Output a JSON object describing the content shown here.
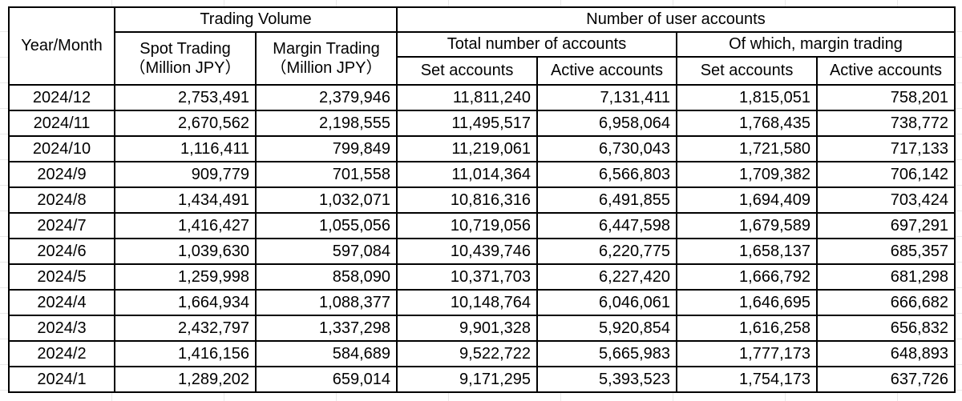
{
  "colors": {
    "table_border": "#000000",
    "text": "#000000",
    "background": "#ffffff",
    "sheet_gridline": "#e9e9e9"
  },
  "table": {
    "header": {
      "year_month": "Year/Month",
      "trading_volume": "Trading Volume",
      "user_accounts": "Number of user accounts",
      "spot_trading_line1": "Spot Trading",
      "spot_trading_line2": "（Million JPY）",
      "margin_trading_line1": "Margin Trading",
      "margin_trading_line2": "（Million JPY）",
      "total_accounts": "Total number of accounts",
      "of_which_margin": "Of which, margin trading",
      "total_set_accounts": "Set accounts",
      "total_active_accounts": "Active accounts",
      "margin_set_accounts": "Set accounts",
      "margin_active_accounts": "Active accounts"
    },
    "column_keys": [
      "spot-trading",
      "margin-trading",
      "total-set-accounts",
      "total-active-accounts",
      "margin-set-accounts",
      "margin-active-accounts"
    ],
    "rows": [
      {
        "month": "2024/12",
        "values": [
          "2,753,491",
          "2,379,946",
          "11,811,240",
          "7,131,411",
          "1,815,051",
          "758,201"
        ]
      },
      {
        "month": "2024/11",
        "values": [
          "2,670,562",
          "2,198,555",
          "11,495,517",
          "6,958,064",
          "1,768,435",
          "738,772"
        ]
      },
      {
        "month": "2024/10",
        "values": [
          "1,116,411",
          "799,849",
          "11,219,061",
          "6,730,043",
          "1,721,580",
          "717,133"
        ]
      },
      {
        "month": "2024/9",
        "values": [
          "909,779",
          "701,558",
          "11,014,364",
          "6,566,803",
          "1,709,382",
          "706,142"
        ]
      },
      {
        "month": "2024/8",
        "values": [
          "1,434,491",
          "1,032,071",
          "10,816,316",
          "6,491,855",
          "1,694,409",
          "703,424"
        ]
      },
      {
        "month": "2024/7",
        "values": [
          "1,416,427",
          "1,055,056",
          "10,719,056",
          "6,447,598",
          "1,679,589",
          "697,291"
        ]
      },
      {
        "month": "2024/6",
        "values": [
          "1,039,630",
          "597,084",
          "10,439,746",
          "6,220,775",
          "1,658,137",
          "685,357"
        ]
      },
      {
        "month": "2024/5",
        "values": [
          "1,259,998",
          "858,090",
          "10,371,703",
          "6,227,420",
          "1,666,792",
          "681,298"
        ]
      },
      {
        "month": "2024/4",
        "values": [
          "1,664,934",
          "1,088,377",
          "10,148,764",
          "6,046,061",
          "1,646,695",
          "666,682"
        ]
      },
      {
        "month": "2024/3",
        "values": [
          "2,432,797",
          "1,337,298",
          "9,901,328",
          "5,920,854",
          "1,616,258",
          "656,832"
        ]
      },
      {
        "month": "2024/2",
        "values": [
          "1,416,156",
          "584,689",
          "9,522,722",
          "5,665,983",
          "1,777,173",
          "648,893"
        ]
      },
      {
        "month": "2024/1",
        "values": [
          "1,289,202",
          "659,014",
          "9,171,295",
          "5,393,523",
          "1,754,173",
          "637,726"
        ]
      }
    ]
  }
}
